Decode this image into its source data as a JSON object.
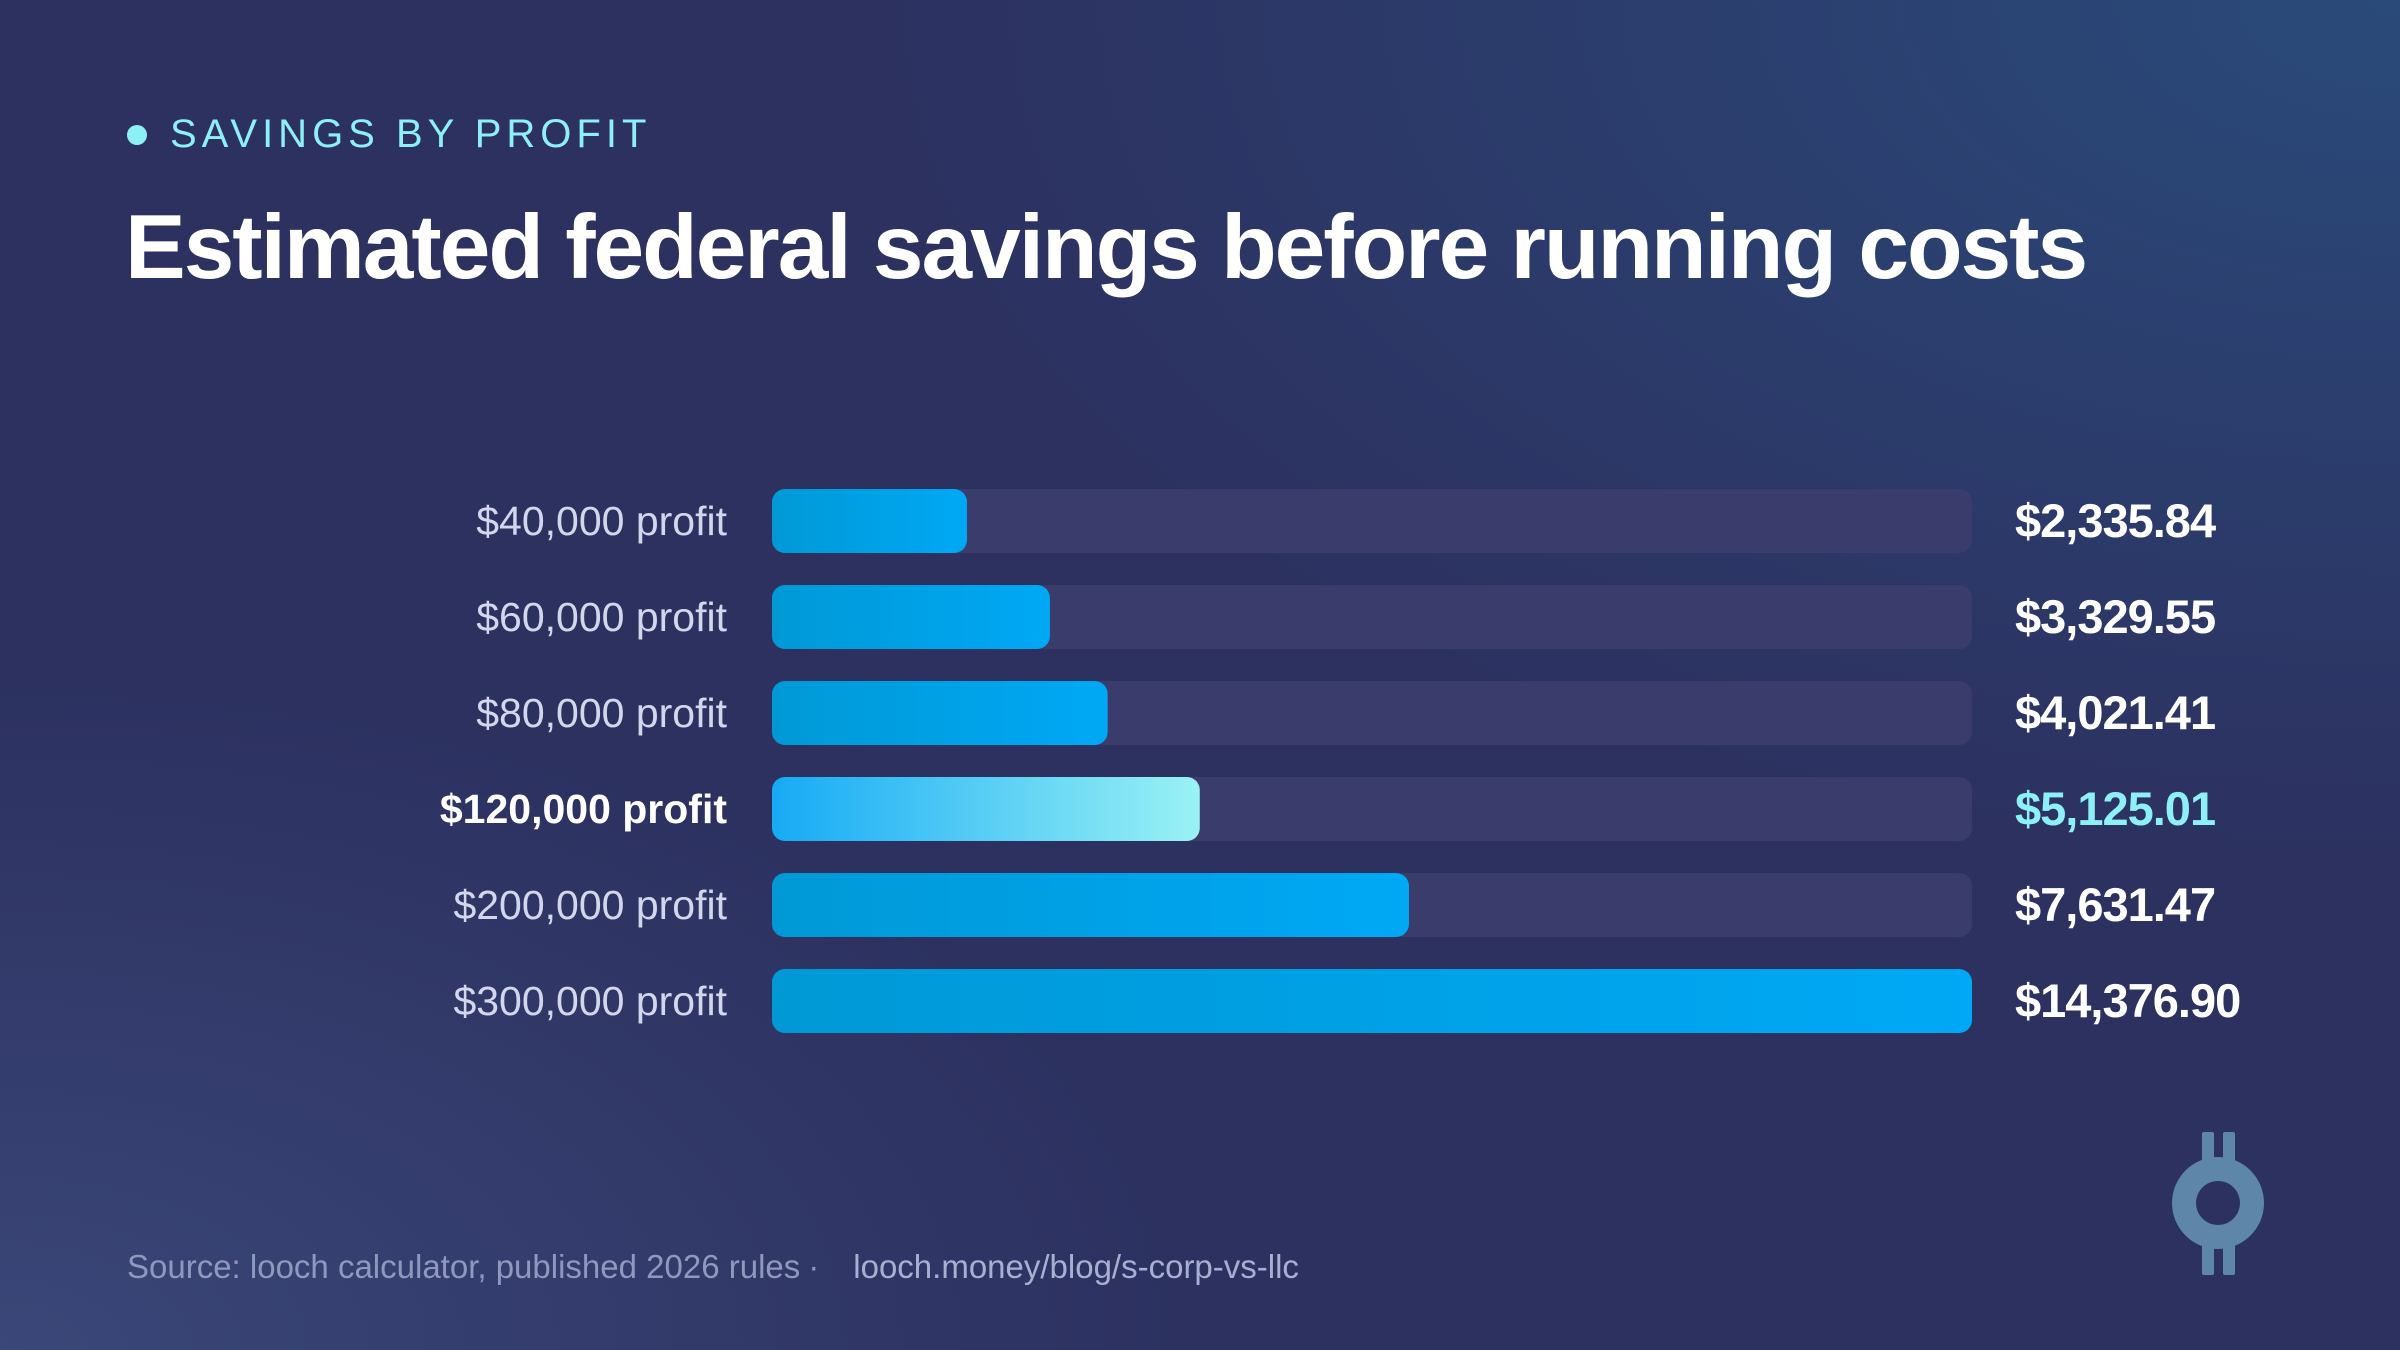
{
  "kicker": "SAVINGS BY PROFIT",
  "title": "Estimated federal savings before running costs",
  "chart_data": {
    "type": "bar",
    "orientation": "horizontal",
    "categories": [
      "$40,000 profit",
      "$60,000 profit",
      "$80,000 profit",
      "$120,000 profit",
      "$200,000 profit",
      "$300,000 profit"
    ],
    "values": [
      2335.84,
      3329.55,
      4021.41,
      5125.01,
      7631.47,
      14376.9
    ],
    "value_labels": [
      "$2,335.84",
      "$3,329.55",
      "$4,021.41",
      "$5,125.01",
      "$7,631.47",
      "$14,376.90"
    ],
    "highlight_index": 3,
    "xlim": [
      0,
      14376.9
    ],
    "grid": false,
    "colors": {
      "bar": "#00a8f0",
      "bar_dark": "#0099d6",
      "highlight_start": "#16aaf5",
      "highlight_end": "#9af2f4",
      "track": "#3a3d6b",
      "highlight_text": "#8ef0f7"
    }
  },
  "footer": {
    "source": "Source: looch calculator, published 2026 rules",
    "separator": "·",
    "url": "looch.money/blog/s-corp-vs-llc"
  },
  "logo": {
    "icon": "looch-coin-logo-icon",
    "color": "#5e86a8"
  }
}
